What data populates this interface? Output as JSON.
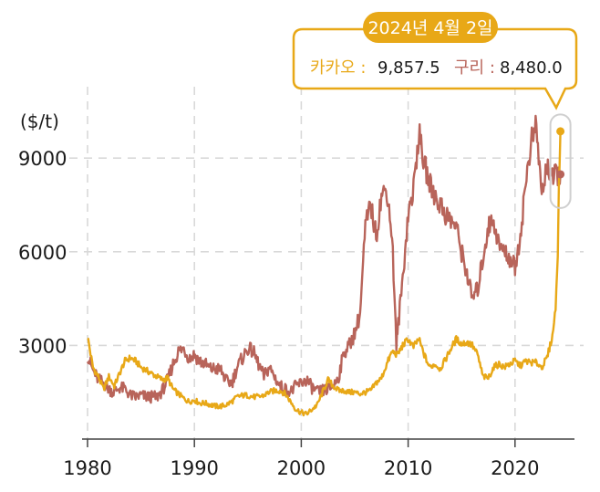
{
  "colors": {
    "cacao": "#E8A817",
    "copper": "#B8645A",
    "grid": "#d9d9d9",
    "axis": "#444444"
  },
  "tooltip": {
    "date": "2024년 4월 2일",
    "cacao_label": "카카오 :",
    "cacao_value": "9,857.5",
    "copper_label": "구리 :",
    "copper_value": "8,480.0"
  },
  "chart_data": {
    "type": "line",
    "ylabel": "($/t)",
    "xlim": [
      1980,
      2024.5
    ],
    "ylim": [
      0,
      11000
    ],
    "y_ticks": [
      3000,
      6000,
      9000
    ],
    "x_ticks": [
      1980,
      1990,
      2000,
      2010,
      2020
    ],
    "grid": true,
    "series": [
      {
        "name": "카카오",
        "color": "#E8A817",
        "points": [
          [
            1980,
            3300
          ],
          [
            1980.5,
            2300
          ],
          [
            1981,
            2000
          ],
          [
            1981.5,
            1600
          ],
          [
            1982,
            2000
          ],
          [
            1982.5,
            1700
          ],
          [
            1983,
            2100
          ],
          [
            1983.5,
            2500
          ],
          [
            1984,
            2600
          ],
          [
            1984.5,
            2500
          ],
          [
            1985,
            2300
          ],
          [
            1985.5,
            2200
          ],
          [
            1986,
            2100
          ],
          [
            1986.5,
            2000
          ],
          [
            1987,
            1900
          ],
          [
            1987.5,
            1950
          ],
          [
            1988,
            1600
          ],
          [
            1988.5,
            1450
          ],
          [
            1989,
            1300
          ],
          [
            1989.5,
            1200
          ],
          [
            1990,
            1250
          ],
          [
            1990.5,
            1150
          ],
          [
            1991,
            1150
          ],
          [
            1991.5,
            1100
          ],
          [
            1992,
            1050
          ],
          [
            1992.5,
            1050
          ],
          [
            1993,
            1100
          ],
          [
            1993.5,
            1200
          ],
          [
            1994,
            1350
          ],
          [
            1994.5,
            1400
          ],
          [
            1995,
            1400
          ],
          [
            1995.5,
            1350
          ],
          [
            1996,
            1350
          ],
          [
            1996.5,
            1400
          ],
          [
            1997,
            1500
          ],
          [
            1997.5,
            1550
          ],
          [
            1998,
            1550
          ],
          [
            1998.5,
            1450
          ],
          [
            1999,
            1200
          ],
          [
            1999.5,
            950
          ],
          [
            2000,
            850
          ],
          [
            2000.5,
            800
          ],
          [
            2001,
            950
          ],
          [
            2001.5,
            1100
          ],
          [
            2002,
            1500
          ],
          [
            2002.5,
            1900
          ],
          [
            2003,
            1700
          ],
          [
            2003.5,
            1550
          ],
          [
            2004,
            1550
          ],
          [
            2004.5,
            1500
          ],
          [
            2005,
            1500
          ],
          [
            2005.5,
            1450
          ],
          [
            2006,
            1500
          ],
          [
            2006.5,
            1550
          ],
          [
            2007,
            1800
          ],
          [
            2007.5,
            1950
          ],
          [
            2008,
            2400
          ],
          [
            2008.5,
            2800
          ],
          [
            2009,
            2700
          ],
          [
            2009.5,
            3000
          ],
          [
            2010,
            3200
          ],
          [
            2010.5,
            2950
          ],
          [
            2011,
            3200
          ],
          [
            2011.5,
            2700
          ],
          [
            2012,
            2300
          ],
          [
            2012.5,
            2400
          ],
          [
            2013,
            2250
          ],
          [
            2013.5,
            2550
          ],
          [
            2014,
            2900
          ],
          [
            2014.5,
            3200
          ],
          [
            2015,
            3050
          ],
          [
            2015.5,
            3100
          ],
          [
            2016,
            3000
          ],
          [
            2016.5,
            2700
          ],
          [
            2017,
            2000
          ],
          [
            2017.5,
            1950
          ],
          [
            2018,
            2300
          ],
          [
            2018.5,
            2400
          ],
          [
            2019,
            2300
          ],
          [
            2019.5,
            2400
          ],
          [
            2020,
            2500
          ],
          [
            2020.5,
            2350
          ],
          [
            2021,
            2500
          ],
          [
            2021.5,
            2450
          ],
          [
            2022,
            2450
          ],
          [
            2022.5,
            2300
          ],
          [
            2023,
            2600
          ],
          [
            2023.5,
            3300
          ],
          [
            2023.8,
            4200
          ],
          [
            2024.0,
            6000
          ],
          [
            2024.1,
            8000
          ],
          [
            2024.25,
            9857.5
          ]
        ]
      },
      {
        "name": "구리",
        "color": "#B8645A",
        "points": [
          [
            1980,
            2700
          ],
          [
            1980.5,
            2200
          ],
          [
            1981,
            1900
          ],
          [
            1981.5,
            1800
          ],
          [
            1982,
            1600
          ],
          [
            1982.5,
            1500
          ],
          [
            1983,
            1650
          ],
          [
            1983.5,
            1600
          ],
          [
            1984,
            1400
          ],
          [
            1984.5,
            1350
          ],
          [
            1985,
            1400
          ],
          [
            1985.5,
            1350
          ],
          [
            1986,
            1350
          ],
          [
            1986.5,
            1350
          ],
          [
            1987,
            1550
          ],
          [
            1987.5,
            1900
          ],
          [
            1988,
            2400
          ],
          [
            1988.5,
            2800
          ],
          [
            1989,
            2900
          ],
          [
            1989.5,
            2600
          ],
          [
            1990,
            2700
          ],
          [
            1990.5,
            2500
          ],
          [
            1991,
            2400
          ],
          [
            1991.5,
            2250
          ],
          [
            1992,
            2250
          ],
          [
            1992.5,
            2200
          ],
          [
            1993,
            1850
          ],
          [
            1993.5,
            1800
          ],
          [
            1994,
            2300
          ],
          [
            1994.5,
            2600
          ],
          [
            1995,
            2900
          ],
          [
            1995.5,
            2800
          ],
          [
            1996,
            2400
          ],
          [
            1996.5,
            2000
          ],
          [
            1997,
            2300
          ],
          [
            1997.5,
            2000
          ],
          [
            1998,
            1700
          ],
          [
            1998.5,
            1600
          ],
          [
            1999,
            1500
          ],
          [
            1999.5,
            1700
          ],
          [
            2000,
            1800
          ],
          [
            2000.5,
            1900
          ],
          [
            2001,
            1650
          ],
          [
            2001.5,
            1500
          ],
          [
            2002,
            1550
          ],
          [
            2002.5,
            1600
          ],
          [
            2003,
            1700
          ],
          [
            2003.5,
            2000
          ],
          [
            2004,
            2800
          ],
          [
            2004.5,
            3000
          ],
          [
            2005,
            3400
          ],
          [
            2005.5,
            4000
          ],
          [
            2006,
            6800
          ],
          [
            2006.5,
            7500
          ],
          [
            2007,
            6500
          ],
          [
            2007.5,
            7800
          ],
          [
            2008,
            8000
          ],
          [
            2008.5,
            6500
          ],
          [
            2008.9,
            3000
          ],
          [
            2009,
            3400
          ],
          [
            2009.5,
            5200
          ],
          [
            2010,
            7200
          ],
          [
            2010.5,
            8000
          ],
          [
            2011,
            9800
          ],
          [
            2011.5,
            8800
          ],
          [
            2012,
            8200
          ],
          [
            2012.5,
            7800
          ],
          [
            2013,
            7500
          ],
          [
            2013.5,
            7200
          ],
          [
            2014,
            7000
          ],
          [
            2014.5,
            6800
          ],
          [
            2015,
            6000
          ],
          [
            2015.5,
            5300
          ],
          [
            2016,
            4500
          ],
          [
            2016.5,
            4800
          ],
          [
            2017,
            5800
          ],
          [
            2017.5,
            6800
          ],
          [
            2018,
            7000
          ],
          [
            2018.5,
            6200
          ],
          [
            2019,
            6000
          ],
          [
            2019.5,
            5800
          ],
          [
            2020,
            5500
          ],
          [
            2020.5,
            6500
          ],
          [
            2021,
            8200
          ],
          [
            2021.5,
            9500
          ],
          [
            2022,
            10000
          ],
          [
            2022.5,
            7800
          ],
          [
            2023,
            8800
          ],
          [
            2023.5,
            8300
          ],
          [
            2024.0,
            8500
          ],
          [
            2024.25,
            8480
          ]
        ]
      }
    ]
  }
}
